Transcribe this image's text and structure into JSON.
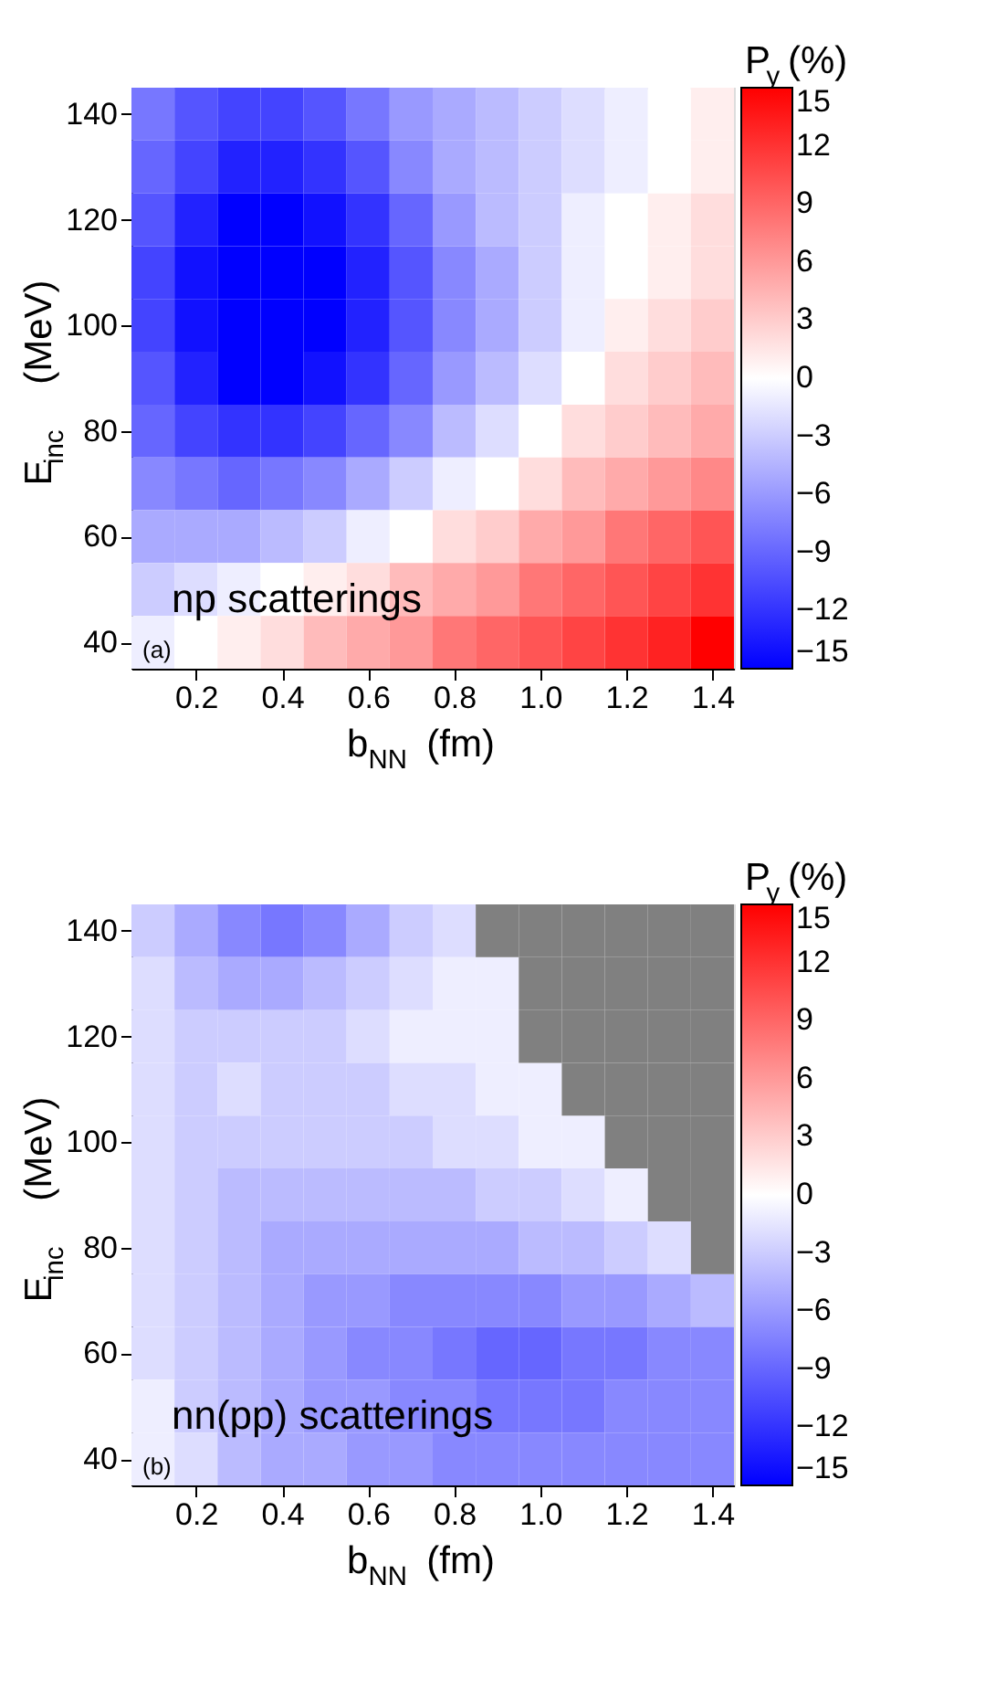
{
  "chart_data": [
    {
      "type": "heatmap",
      "xlabel": "b$_{NN}$ (fm)",
      "ylabel": "E$_{inc}$ (MeV)",
      "clabel": "P$_{y}$(%)",
      "annotations": [
        "np scatterings",
        "(a)"
      ],
      "x": [
        0.1,
        0.2,
        0.3,
        0.4,
        0.5,
        0.6,
        0.7,
        0.8,
        0.9,
        1.0,
        1.1,
        1.2,
        1.3,
        1.4
      ],
      "y": [
        140,
        130,
        120,
        110,
        100,
        90,
        80,
        70,
        60,
        50,
        40
      ],
      "cells": [
        [
          -8,
          -10,
          -11,
          -11,
          -10,
          -8,
          -6,
          -5,
          -4,
          -3,
          -2,
          -1,
          0,
          1
        ],
        [
          -9,
          -11,
          -13,
          -13,
          -12,
          -10,
          -7,
          -5,
          -4,
          -3,
          -2,
          -1,
          0,
          1
        ],
        [
          -10,
          -13,
          -15,
          -15,
          -14,
          -12,
          -9,
          -6,
          -4,
          -3,
          -1,
          0,
          1,
          2
        ],
        [
          -11,
          -14,
          -15,
          -15,
          -15,
          -13,
          -10,
          -7,
          -5,
          -3,
          -1,
          0,
          1,
          2
        ],
        [
          -11,
          -14,
          -15,
          -15,
          -15,
          -13,
          -10,
          -7,
          -5,
          -3,
          -1,
          1,
          2,
          3
        ],
        [
          -10,
          -13,
          -15,
          -15,
          -14,
          -12,
          -9,
          -6,
          -4,
          -2,
          0,
          2,
          3,
          4
        ],
        [
          -9,
          -11,
          -12,
          -12,
          -11,
          -9,
          -7,
          -4,
          -2,
          0,
          2,
          3,
          4,
          5
        ],
        [
          -7,
          -8,
          -9,
          -8,
          -7,
          -5,
          -3,
          -1,
          0,
          2,
          4,
          5,
          6,
          7
        ],
        [
          -5,
          -5,
          -5,
          -4,
          -3,
          -1,
          0,
          2,
          3,
          5,
          6,
          8,
          9,
          10
        ],
        [
          -3,
          -2,
          -1,
          0,
          1,
          2,
          4,
          5,
          6,
          8,
          9,
          10,
          11,
          12
        ],
        [
          -1,
          0,
          1,
          2,
          4,
          5,
          6,
          8,
          9,
          10,
          11,
          12,
          13,
          15
        ]
      ],
      "xlim": [
        0.05,
        1.45
      ],
      "xticks": [
        0.2,
        0.4,
        0.6,
        0.8,
        {
          "value": 1.0,
          "label": "1.0"
        },
        1.2,
        1.4
      ],
      "ylim": [
        35,
        145
      ],
      "yticks": [
        40,
        60,
        80,
        100,
        120,
        140
      ],
      "clim": [
        -15,
        15
      ],
      "cticks": [
        -15,
        -12,
        -9,
        -6,
        -3,
        0,
        3,
        6,
        9,
        12,
        15
      ]
    },
    {
      "type": "heatmap",
      "xlabel": "b$_{NN}$ (fm)",
      "ylabel": "E$_{inc}$ (MeV)",
      "clabel": "P$_{y}$(%)",
      "annotations": [
        "nn(pp) scatterings",
        "(b)"
      ],
      "x": [
        0.1,
        0.2,
        0.3,
        0.4,
        0.5,
        0.6,
        0.7,
        0.8,
        0.9,
        1.0,
        1.1,
        1.2,
        1.3,
        1.4
      ],
      "y": [
        140,
        130,
        120,
        110,
        100,
        90,
        80,
        70,
        60,
        50,
        40
      ],
      "cells": [
        [
          -3,
          -5,
          -7,
          -8,
          -7,
          -5,
          -3,
          -2,
          null,
          null,
          null,
          null,
          null,
          null
        ],
        [
          -2,
          -4,
          -5,
          -5,
          -4,
          -3,
          -2,
          -1,
          -1,
          null,
          null,
          null,
          null,
          null
        ],
        [
          -2,
          -3,
          -3,
          -3,
          -3,
          -2,
          -1,
          -1,
          -1,
          null,
          null,
          null,
          null,
          null
        ],
        [
          -2,
          -3,
          -2,
          -3,
          -3,
          -3,
          -2,
          -2,
          -1,
          -1,
          null,
          null,
          null,
          null
        ],
        [
          -2,
          -3,
          -3,
          -3,
          -3,
          -3,
          -3,
          -2,
          -2,
          -1,
          -1,
          null,
          null,
          null
        ],
        [
          -2,
          -3,
          -4,
          -4,
          -4,
          -4,
          -4,
          -4,
          -3,
          -3,
          -2,
          -1,
          null,
          null
        ],
        [
          -2,
          -3,
          -4,
          -5,
          -5,
          -5,
          -5,
          -5,
          -5,
          -4,
          -4,
          -3,
          -2,
          null
        ],
        [
          -2,
          -3,
          -4,
          -5,
          -6,
          -6,
          -7,
          -7,
          -7,
          -7,
          -6,
          -6,
          -5,
          -4
        ],
        [
          -2,
          -3,
          -4,
          -5,
          -6,
          -7,
          -7,
          -8,
          -9,
          -9,
          -8,
          -8,
          -7,
          -7
        ],
        [
          -1,
          -3,
          -4,
          -5,
          -6,
          -6,
          -7,
          -7,
          -8,
          -8,
          -8,
          -7,
          -7,
          -7
        ],
        [
          -1,
          -2,
          -4,
          -5,
          -5,
          -6,
          -6,
          -7,
          -7,
          -7,
          -7,
          -7,
          -7,
          -7
        ]
      ],
      "xlim": [
        0.05,
        1.45
      ],
      "xticks": [
        0.2,
        0.4,
        0.6,
        0.8,
        {
          "value": 1.0,
          "label": "1.0"
        },
        1.2,
        1.4
      ],
      "ylim": [
        35,
        145
      ],
      "yticks": [
        40,
        60,
        80,
        100,
        120,
        140
      ],
      "clim": [
        -15,
        15
      ],
      "cticks": [
        -15,
        -12,
        -9,
        -6,
        -3,
        0,
        3,
        6,
        9,
        12,
        15
      ]
    }
  ]
}
